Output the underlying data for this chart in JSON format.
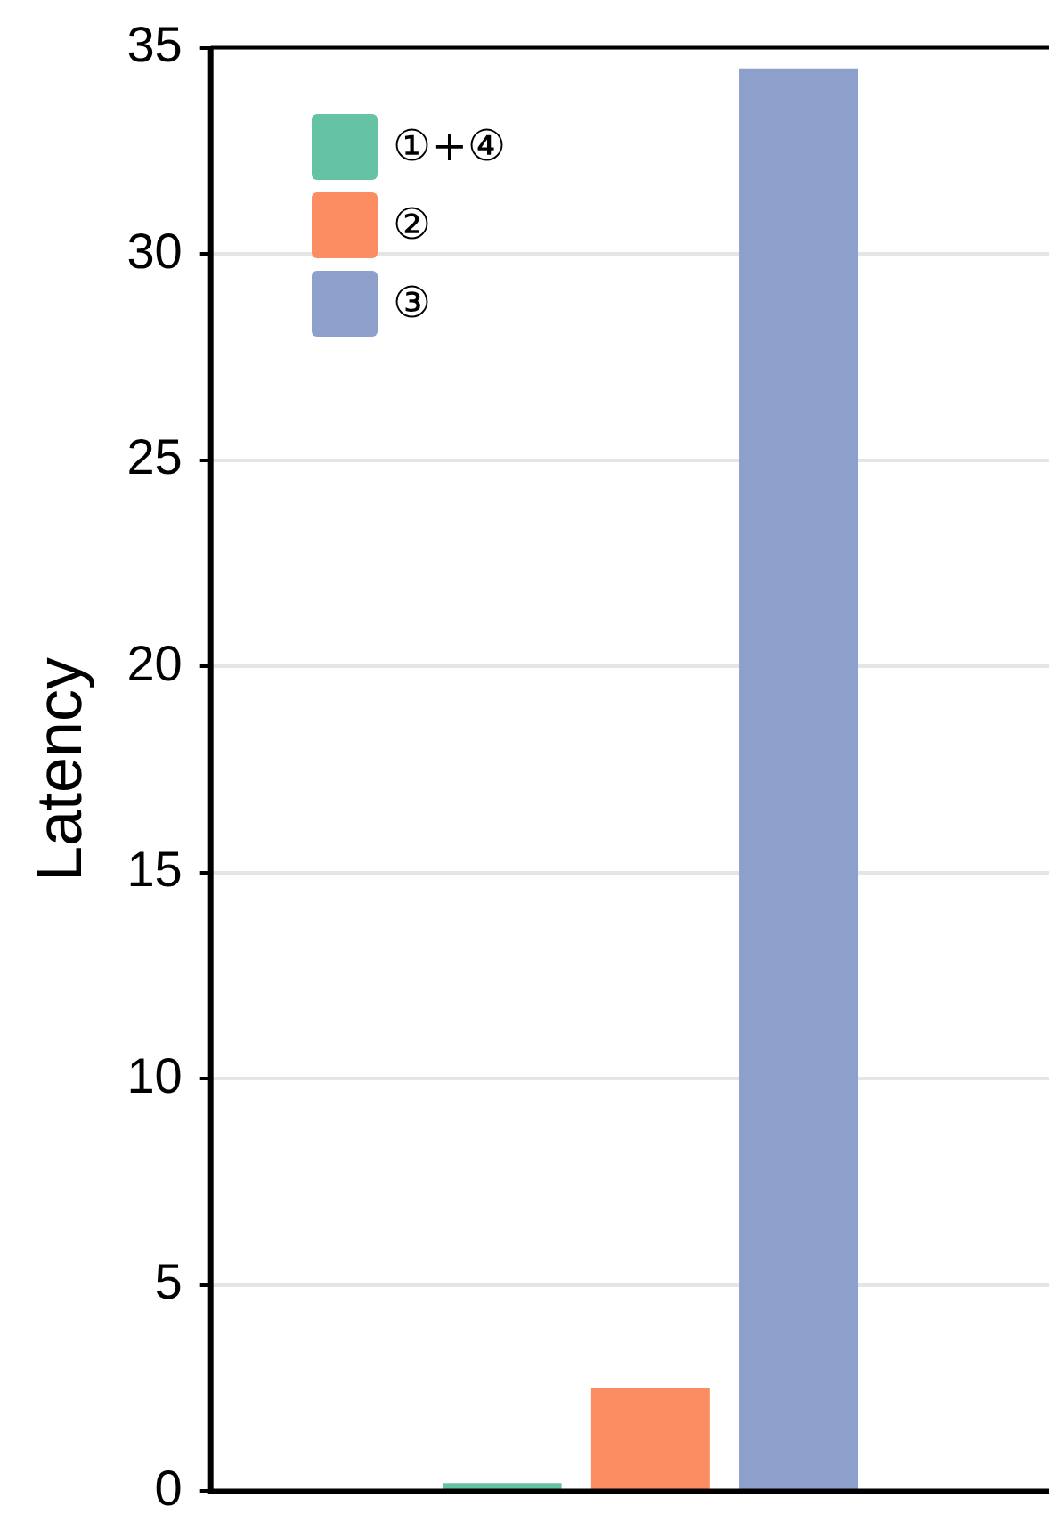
{
  "chart_data": {
    "type": "bar",
    "ylabel": "Latency",
    "categories": [
      null
    ],
    "series": [
      {
        "name": "①+④",
        "color": "#66c2a5",
        "values": [
          0.2
        ]
      },
      {
        "name": "②",
        "color": "#fc8d62",
        "values": [
          2.5
        ]
      },
      {
        "name": "③",
        "color": "#8da0cb",
        "values": [
          34.5
        ]
      }
    ],
    "ylim": [
      0,
      35
    ],
    "yticks": [
      0,
      5,
      10,
      15,
      20,
      25,
      30,
      35
    ],
    "grid": "y",
    "legend": "top left"
  }
}
